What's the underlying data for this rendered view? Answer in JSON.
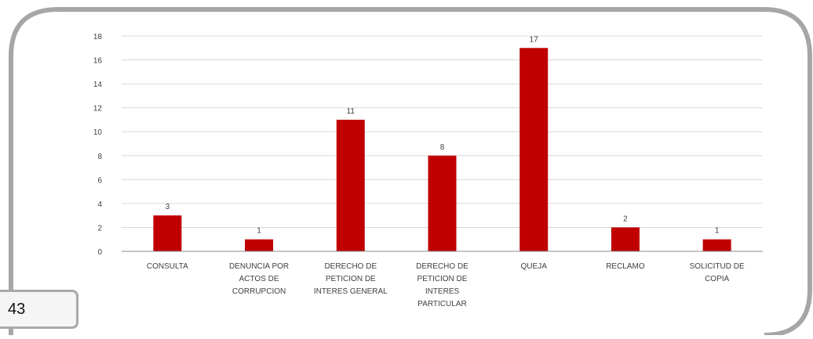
{
  "page": {
    "number": "43"
  },
  "colors": {
    "bar": "#c00000",
    "frame": "#a6a6a6",
    "grid": "#d9d9d9",
    "axis": "#8c8c8c",
    "text": "#404040"
  },
  "chart_data": {
    "type": "bar",
    "title": "",
    "xlabel": "",
    "ylabel": "",
    "ylim": [
      0,
      18
    ],
    "yticks": [
      0,
      2,
      4,
      6,
      8,
      10,
      12,
      14,
      16,
      18
    ],
    "grid": true,
    "legend": "none",
    "categories": [
      [
        "CONSULTA"
      ],
      [
        "DENUNCIA POR",
        "ACTOS DE",
        "CORRUPCION"
      ],
      [
        "DERECHO DE",
        "PETICION DE",
        "INTERES GENERAL"
      ],
      [
        "DERECHO DE",
        "PETICION DE",
        "INTERES",
        "PARTICULAR"
      ],
      [
        "QUEJA"
      ],
      [
        "RECLAMO"
      ],
      [
        "SOLICITUD DE",
        "COPIA"
      ]
    ],
    "values": [
      3,
      1,
      11,
      8,
      17,
      2,
      1
    ]
  }
}
